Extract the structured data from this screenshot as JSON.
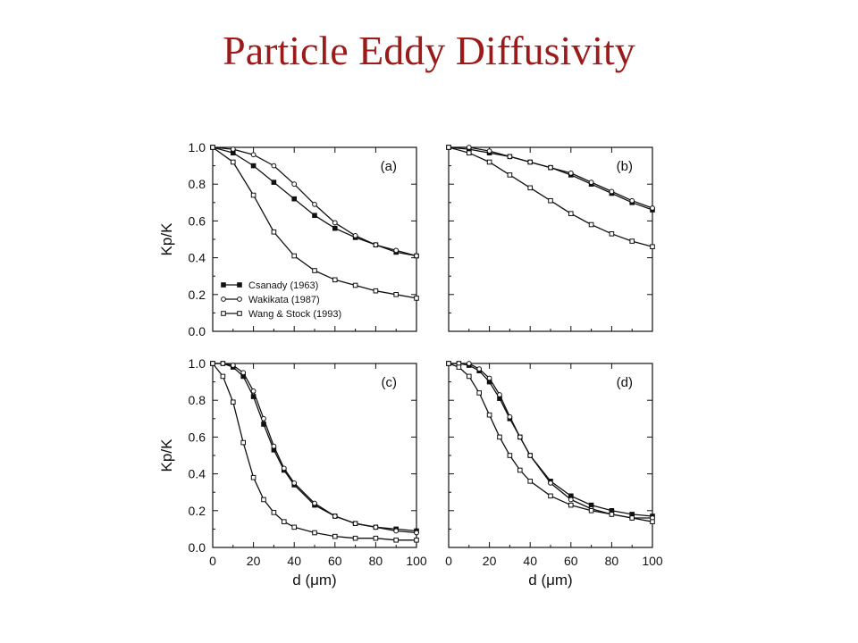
{
  "slide": {
    "title": "Particle Eddy Diffusivity"
  },
  "chart_data": [
    {
      "type": "line",
      "panel": "(a)",
      "xlim": [
        0,
        100
      ],
      "ylim": [
        0,
        1.0
      ],
      "xlabel": "",
      "ylabel": "Kp/K",
      "x": [
        0,
        10,
        20,
        30,
        40,
        50,
        60,
        70,
        80,
        90,
        100
      ],
      "legend": [
        "Csanady (1963)",
        "Wakikata (1987)",
        "Wang & Stock (1993)"
      ],
      "legend_position": "bottom-left",
      "series": [
        {
          "name": "Csanady (1963)",
          "marker": "filled-square",
          "values": [
            1.0,
            0.97,
            0.9,
            0.81,
            0.72,
            0.63,
            0.56,
            0.51,
            0.47,
            0.43,
            0.41
          ]
        },
        {
          "name": "Wakikata (1987)",
          "marker": "open-circle",
          "values": [
            1.0,
            0.99,
            0.96,
            0.9,
            0.8,
            0.69,
            0.59,
            0.52,
            0.47,
            0.44,
            0.41
          ]
        },
        {
          "name": "Wang & Stock (1993)",
          "marker": "open-square",
          "values": [
            1.0,
            0.92,
            0.74,
            0.54,
            0.41,
            0.33,
            0.28,
            0.25,
            0.22,
            0.2,
            0.18
          ]
        }
      ]
    },
    {
      "type": "line",
      "panel": "(b)",
      "xlim": [
        0,
        100
      ],
      "ylim": [
        0,
        1.0
      ],
      "xlabel": "",
      "ylabel": "",
      "x": [
        0,
        10,
        20,
        30,
        40,
        50,
        60,
        70,
        80,
        90,
        100
      ],
      "series": [
        {
          "name": "Csanady (1963)",
          "marker": "filled-square",
          "values": [
            1.0,
            0.99,
            0.97,
            0.95,
            0.92,
            0.89,
            0.85,
            0.8,
            0.75,
            0.7,
            0.66
          ]
        },
        {
          "name": "Wakikata (1987)",
          "marker": "open-circle",
          "values": [
            1.0,
            1.0,
            0.98,
            0.95,
            0.92,
            0.89,
            0.86,
            0.81,
            0.76,
            0.71,
            0.67
          ]
        },
        {
          "name": "Wang & Stock (1993)",
          "marker": "open-square",
          "values": [
            1.0,
            0.97,
            0.92,
            0.85,
            0.78,
            0.71,
            0.64,
            0.58,
            0.53,
            0.49,
            0.46
          ]
        }
      ]
    },
    {
      "type": "line",
      "panel": "(c)",
      "xlim": [
        0,
        100
      ],
      "ylim": [
        0,
        1.0
      ],
      "xlabel": "d (μm)",
      "ylabel": "Kp/K",
      "x": [
        0,
        5,
        10,
        15,
        20,
        25,
        30,
        35,
        40,
        50,
        60,
        70,
        80,
        90,
        100
      ],
      "series": [
        {
          "name": "Csanady (1963)",
          "marker": "filled-square",
          "values": [
            1.0,
            1.0,
            0.98,
            0.93,
            0.82,
            0.67,
            0.53,
            0.42,
            0.34,
            0.23,
            0.17,
            0.13,
            0.11,
            0.1,
            0.09
          ]
        },
        {
          "name": "Wakikata (1987)",
          "marker": "open-circle",
          "values": [
            1.0,
            1.0,
            0.99,
            0.95,
            0.85,
            0.7,
            0.55,
            0.43,
            0.35,
            0.24,
            0.17,
            0.13,
            0.11,
            0.09,
            0.08
          ]
        },
        {
          "name": "Wang & Stock (1993)",
          "marker": "open-square",
          "values": [
            1.0,
            0.93,
            0.79,
            0.57,
            0.38,
            0.26,
            0.19,
            0.14,
            0.11,
            0.08,
            0.06,
            0.05,
            0.05,
            0.04,
            0.04
          ]
        }
      ]
    },
    {
      "type": "line",
      "panel": "(d)",
      "xlim": [
        0,
        100
      ],
      "ylim": [
        0,
        1.0
      ],
      "xlabel": "d (μm)",
      "ylabel": "",
      "x": [
        0,
        5,
        10,
        15,
        20,
        25,
        30,
        35,
        40,
        50,
        60,
        70,
        80,
        90,
        100
      ],
      "series": [
        {
          "name": "Csanady (1963)",
          "marker": "filled-square",
          "values": [
            1.0,
            1.0,
            0.99,
            0.96,
            0.9,
            0.81,
            0.7,
            0.6,
            0.5,
            0.36,
            0.28,
            0.23,
            0.2,
            0.18,
            0.17
          ]
        },
        {
          "name": "Wakikata (1987)",
          "marker": "open-circle",
          "values": [
            1.0,
            1.0,
            1.0,
            0.97,
            0.92,
            0.83,
            0.71,
            0.6,
            0.5,
            0.35,
            0.26,
            0.21,
            0.18,
            0.16,
            0.16
          ]
        },
        {
          "name": "Wang & Stock (1993)",
          "marker": "open-square",
          "values": [
            1.0,
            0.98,
            0.93,
            0.84,
            0.72,
            0.6,
            0.5,
            0.42,
            0.36,
            0.28,
            0.23,
            0.2,
            0.18,
            0.16,
            0.14
          ]
        }
      ]
    }
  ]
}
